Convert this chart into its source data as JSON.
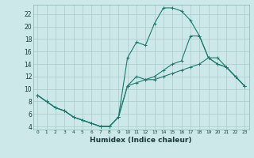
{
  "xlabel": "Humidex (Indice chaleur)",
  "background_color": "#cce8e8",
  "grid_color": "#aacccc",
  "line_color": "#1a7a6e",
  "xlim": [
    -0.5,
    23.5
  ],
  "ylim": [
    3.5,
    23.5
  ],
  "line1_x": [
    0,
    1,
    2,
    3,
    4,
    5,
    6,
    7,
    8,
    9,
    10,
    11,
    12,
    13,
    14,
    15,
    16,
    17,
    18,
    19,
    20,
    21,
    22,
    23
  ],
  "line1_y": [
    9,
    8,
    7,
    6.5,
    5.5,
    5,
    4.5,
    4,
    4,
    5.5,
    10.5,
    11,
    11.5,
    11.5,
    12,
    12.5,
    13,
    13.5,
    14,
    15,
    15,
    13.5,
    12,
    10.5
  ],
  "line2_x": [
    0,
    1,
    2,
    3,
    4,
    5,
    6,
    7,
    8,
    9,
    10,
    11,
    12,
    13,
    14,
    15,
    16,
    17,
    18,
    19,
    20,
    21,
    22,
    23
  ],
  "line2_y": [
    9,
    8,
    7,
    6.5,
    5.5,
    5,
    4.5,
    4,
    4,
    5.5,
    10.5,
    12,
    11.5,
    12,
    13,
    14,
    14.5,
    18.5,
    18.5,
    15,
    14,
    13.5,
    12,
    10.5
  ],
  "line3_x": [
    0,
    1,
    2,
    3,
    4,
    5,
    6,
    7,
    8,
    9,
    10,
    11,
    12,
    13,
    14,
    15,
    16,
    17,
    18,
    19,
    20,
    21,
    22,
    23
  ],
  "line3_y": [
    9,
    8,
    7,
    6.5,
    5.5,
    5,
    4.5,
    4,
    4,
    5.5,
    15,
    17.5,
    17,
    20.5,
    23,
    23,
    22.5,
    21,
    18.5,
    15,
    14,
    13.5,
    12,
    10.5
  ],
  "yticks": [
    4,
    6,
    8,
    10,
    12,
    14,
    16,
    18,
    20,
    22
  ],
  "xticks": [
    0,
    1,
    2,
    3,
    4,
    5,
    6,
    7,
    8,
    9,
    10,
    11,
    12,
    13,
    14,
    15,
    16,
    17,
    18,
    19,
    20,
    21,
    22,
    23
  ]
}
